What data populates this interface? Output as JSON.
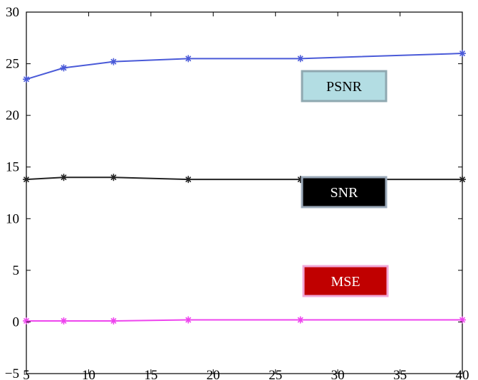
{
  "chart_data": {
    "type": "line",
    "title": "",
    "xlabel": "",
    "ylabel": "",
    "xlim": [
      5,
      40
    ],
    "ylim": [
      -5,
      30
    ],
    "grid": false,
    "x_ticks": [
      5,
      10,
      15,
      20,
      25,
      30,
      35,
      40
    ],
    "y_ticks": [
      -5,
      0,
      5,
      10,
      15,
      20,
      25,
      30
    ],
    "x_tick_labels": [
      "5",
      "10",
      "15",
      "20",
      "25",
      "30",
      "35",
      "40"
    ],
    "y_tick_labels": [
      "−5",
      "0",
      "5",
      "10",
      "15",
      "20",
      "25",
      "30"
    ],
    "series": [
      {
        "name": "PSNR",
        "color": "#4a5ad8",
        "marker": "asterisk",
        "x": [
          5,
          8,
          12,
          18,
          27,
          40
        ],
        "y": [
          23.5,
          24.6,
          25.2,
          25.5,
          25.5,
          26.0
        ]
      },
      {
        "name": "SNR",
        "color": "#222222",
        "marker": "asterisk",
        "x": [
          5,
          8,
          12,
          18,
          27,
          40
        ],
        "y": [
          13.8,
          14.0,
          14.0,
          13.8,
          13.8,
          13.8
        ]
      },
      {
        "name": "MSE",
        "color": "#ee44ee",
        "marker": "asterisk",
        "x": [
          5,
          8,
          12,
          18,
          27,
          40
        ],
        "y": [
          0.1,
          0.1,
          0.1,
          0.2,
          0.2,
          0.2
        ]
      }
    ],
    "legend_boxes": [
      {
        "label": "PSNR",
        "fill": "#b3dde3",
        "border": "#8fa8b0",
        "text_color": "#000000"
      },
      {
        "label": "SNR",
        "fill": "#000000",
        "border": "#9aa8b8",
        "text_color": "#ffffff"
      },
      {
        "label": "MSE",
        "fill": "#c00000",
        "border": "#f0a8d8",
        "text_color": "#ffffff"
      }
    ]
  }
}
